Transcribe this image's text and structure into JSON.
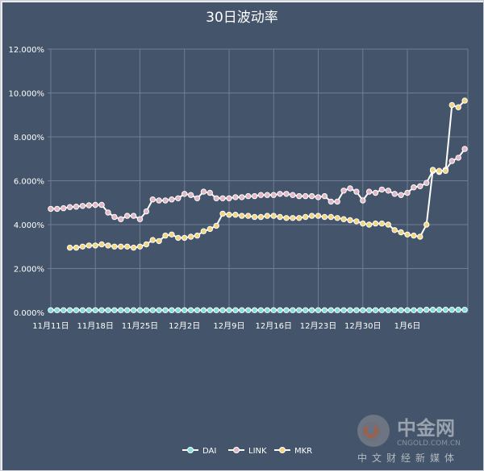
{
  "chart_data": {
    "type": "line",
    "title": "30日波动率",
    "xlabel": "",
    "ylabel": "",
    "ylim": [
      0,
      12
    ],
    "y_ticks": [
      "0.000%",
      "2.000%",
      "4.000%",
      "6.000%",
      "8.000%",
      "10.000%",
      "12.000%"
    ],
    "x_ticks": [
      "11月11日",
      "11月18日",
      "11月25日",
      "12月2日",
      "12月9日",
      "12月16日",
      "12月23日",
      "12月30日",
      "1月6日"
    ],
    "grid": true,
    "legend_position": "bottom",
    "series": [
      {
        "name": "DAI",
        "color": "#7fe0dc",
        "values": [
          0.1,
          0.1,
          0.1,
          0.1,
          0.1,
          0.1,
          0.1,
          0.1,
          0.1,
          0.1,
          0.1,
          0.1,
          0.1,
          0.1,
          0.1,
          0.1,
          0.1,
          0.1,
          0.1,
          0.1,
          0.1,
          0.1,
          0.1,
          0.1,
          0.1,
          0.1,
          0.1,
          0.1,
          0.1,
          0.1,
          0.1,
          0.1,
          0.1,
          0.1,
          0.1,
          0.1,
          0.1,
          0.1,
          0.1,
          0.1,
          0.1,
          0.1,
          0.1,
          0.1,
          0.1,
          0.1,
          0.1,
          0.1,
          0.1,
          0.1,
          0.1,
          0.1,
          0.1,
          0.1,
          0.1,
          0.1,
          0.1,
          0.1,
          0.1,
          0.12,
          0.12,
          0.12,
          0.12,
          0.12,
          0.12,
          0.12
        ]
      },
      {
        "name": "LINK",
        "color": "#e3b7c6",
        "values": [
          4.72,
          4.72,
          4.75,
          4.8,
          4.82,
          4.85,
          4.88,
          4.9,
          4.9,
          4.55,
          4.35,
          4.25,
          4.4,
          4.4,
          4.25,
          4.6,
          5.15,
          5.1,
          5.1,
          5.15,
          5.2,
          5.4,
          5.35,
          5.2,
          5.5,
          5.45,
          5.2,
          5.2,
          5.2,
          5.25,
          5.25,
          5.3,
          5.3,
          5.35,
          5.35,
          5.35,
          5.4,
          5.4,
          5.35,
          5.3,
          5.3,
          5.3,
          5.25,
          5.3,
          5.05,
          5.05,
          5.55,
          5.65,
          5.5,
          5.1,
          5.5,
          5.45,
          5.6,
          5.55,
          5.4,
          5.35,
          5.45,
          5.7,
          5.75,
          5.9,
          6.45,
          6.4,
          6.5,
          6.9,
          7.05,
          7.45
        ]
      },
      {
        "name": "MKR",
        "color": "#f2d67d",
        "values": [
          2.95,
          2.95,
          3.0,
          3.05,
          3.05,
          3.1,
          3.05,
          3.0,
          3.0,
          3.0,
          2.95,
          3.0,
          3.1,
          3.3,
          3.25,
          3.5,
          3.55,
          3.4,
          3.4,
          3.45,
          3.5,
          3.7,
          3.8,
          3.95,
          4.5,
          4.45,
          4.45,
          4.4,
          4.4,
          4.35,
          4.35,
          4.4,
          4.4,
          4.35,
          4.3,
          4.3,
          4.3,
          4.35,
          4.4,
          4.4,
          4.35,
          4.35,
          4.3,
          4.25,
          4.2,
          4.15,
          4.05,
          4.0,
          4.05,
          4.05,
          4.0,
          3.75,
          3.65,
          3.55,
          3.5,
          3.45,
          4.0,
          6.5,
          6.45,
          6.45,
          9.45,
          9.35,
          9.65
        ]
      }
    ]
  },
  "watermark": {
    "brand": "中金网",
    "domain": "CNGOLD.COM.CN",
    "tagline": "中文财经新媒体"
  }
}
